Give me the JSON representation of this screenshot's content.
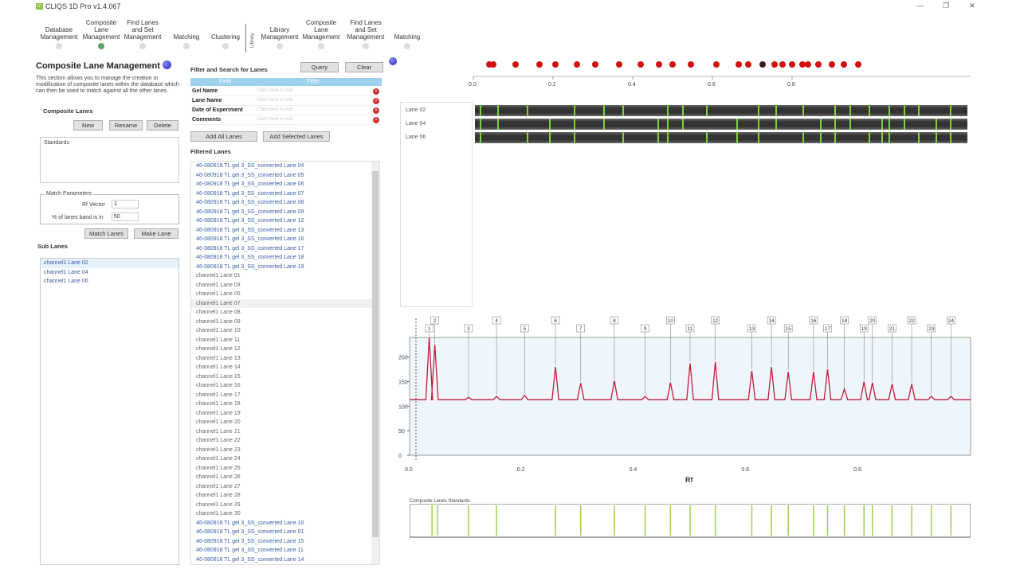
{
  "app": {
    "title": "CLIQS 1D Pro v1.4.067",
    "logo_text": "1D"
  },
  "window_controls": [
    "—",
    "❐",
    "✕"
  ],
  "nav": {
    "steps": [
      {
        "label": "Database\nManagement",
        "active": false
      },
      {
        "label": "Composite\nLane\nManagement",
        "active": true
      },
      {
        "label": "Find Lanes\nand Set\nManagement",
        "active": false
      },
      {
        "label": "Matching",
        "active": false
      },
      {
        "label": "Clustering",
        "active": false
      },
      {
        "label": "Library\nManagement",
        "active": false
      },
      {
        "label": "Composite\nLane\nManagement",
        "active": false
      },
      {
        "label": "Find Lanes\nand Set\nManagement",
        "active": false
      },
      {
        "label": "Matching",
        "active": false
      }
    ],
    "library_label": "Library"
  },
  "left": {
    "title": "Composite Lane Management",
    "description": "This section allows you to manage the creation or modification of composite lanes within the database which can then be used to match against all the other lanes.",
    "composite_lanes_label": "Composite Lanes",
    "new_label": "New",
    "rename_label": "Rename",
    "delete_label": "Delete",
    "standards_label": "Standards",
    "match_params_label": "Match Parameters",
    "rf_vector_label": "Rf Vector",
    "rf_vector_value": "1",
    "percent_label": "% of lanes band is in",
    "percent_value": "50",
    "match_lanes_label": "Match Lanes",
    "make_lane_label": "Make Lane",
    "sub_lanes_label": "Sub Lanes",
    "sub_lanes": [
      "channel1  Lane 02",
      "channel1  Lane 04",
      "channel1  Lane 06"
    ]
  },
  "middle": {
    "filter_title": "Filter and Search for Lanes",
    "query_label": "Query",
    "clear_label": "Clear",
    "col_field": "Field",
    "col_filter": "Filter",
    "filter_rows": [
      {
        "field": "Gel Name",
        "placeholder": "Click here to edit"
      },
      {
        "field": "Lane Name",
        "placeholder": "Click here to edit"
      },
      {
        "field": "Date of Experiment",
        "placeholder": "Click here to edit"
      },
      {
        "field": "Comments",
        "placeholder": "Click here to edit"
      }
    ],
    "add_all_label": "Add All Lanes",
    "add_selected_label": "Add Selected Lanes",
    "filtered_label": "Filtered Lanes",
    "lanes": [
      "46-080918 TL gel 3_SS_converted Lane 04",
      "46-080918 TL gel 3_SS_converted Lane 05",
      "46-080918 TL gel 3_SS_converted Lane 06",
      "46-080918 TL gel 3_SS_converted Lane 07",
      "46-080918 TL gel 3_SS_converted Lane 08",
      "46-080918 TL gel 3_SS_converted Lane 09",
      "46-080918 TL gel 3_SS_converted Lane 12",
      "46-080918 TL gel 3_SS_converted Lane 13",
      "46-080918 TL gel 3_SS_converted Lane 16",
      "46-080918 TL gel 3_SS_converted Lane 17",
      "46-080918 TL gel 3_SS_converted Lane 18",
      "46-080918 TL gel 3_SS_converted Lane 19",
      "channel1  Lane 01",
      "channel1  Lane 03",
      "channel1  Lane 05",
      "channel1  Lane 07",
      "channel1  Lane 08",
      "channel1  Lane 09",
      "channel1  Lane 10",
      "channel1  Lane 11",
      "channel1  Lane 12",
      "channel1  Lane 13",
      "channel1  Lane 14",
      "channel1  Lane 15",
      "channel1  Lane 16",
      "channel1  Lane 17",
      "channel1  Lane 18",
      "channel1  Lane 19",
      "channel1  Lane 20",
      "channel1  Lane 21",
      "channel1  Lane 22",
      "channel1  Lane 23",
      "channel1  Lane 24",
      "channel1  Lane 25",
      "channel1  Lane 26",
      "channel1  Lane 27",
      "channel1  Lane 28",
      "channel1  Lane 29",
      "channel1  Lane 30",
      "46-080918 TL gel 3_SS_converted Lane 10",
      "46-080918 TL gel 3_SS_converted Lane 01",
      "46-080918 TL gel 3_SS_converted Lane 15",
      "46-080918 TL gel 3_SS_converted Lane 11",
      "46-080918 TL gel 3_SS_converted Lane 14"
    ]
  },
  "right": {
    "top_axis_ticks": [
      "0.0",
      "0.2",
      "0.4",
      "0.6",
      "0.8"
    ],
    "top_dots": [
      0.04,
      0.05,
      0.105,
      0.165,
      0.205,
      0.26,
      0.305,
      0.365,
      0.42,
      0.465,
      0.5,
      0.545,
      0.61,
      0.665,
      0.69,
      0.725,
      0.755,
      0.775,
      0.8,
      0.825,
      0.84,
      0.865,
      0.9,
      0.93,
      0.965
    ],
    "dark_dot": 0.725,
    "gel_lanes": [
      "Lane 02",
      "Lane 04",
      "Lane 06"
    ],
    "gel_bands": [
      0.01,
      0.045,
      0.105,
      0.15,
      0.2,
      0.26,
      0.3,
      0.37,
      0.39,
      0.42,
      0.47,
      0.53,
      0.575,
      0.61,
      0.665,
      0.7,
      0.73,
      0.76,
      0.8,
      0.825,
      0.84,
      0.87,
      0.9,
      0.935,
      0.965
    ],
    "standards_label": "Composite Lanes Standards",
    "standards_bands": [
      0.04,
      0.05,
      0.105,
      0.155,
      0.26,
      0.305,
      0.365,
      0.42,
      0.465,
      0.5,
      0.545,
      0.61,
      0.645,
      0.675,
      0.72,
      0.745,
      0.775,
      0.81,
      0.825,
      0.86,
      0.895,
      0.93,
      0.965
    ]
  },
  "chart_data": {
    "type": "line",
    "title": "",
    "xlabel": "Rf",
    "ylabel": "",
    "xlim": [
      0,
      1
    ],
    "ylim": [
      0,
      240
    ],
    "x_ticks": [
      "0.0",
      "0.2",
      "0.4",
      "0.6",
      "0.8"
    ],
    "y_ticks": [
      "0",
      "50",
      "100",
      "150",
      "200"
    ],
    "baseline": 113,
    "peaks": [
      {
        "x": 0.035,
        "y": 240
      },
      {
        "x": 0.045,
        "y": 225
      },
      {
        "x": 0.105,
        "y": 118
      },
      {
        "x": 0.155,
        "y": 120
      },
      {
        "x": 0.205,
        "y": 122
      },
      {
        "x": 0.26,
        "y": 180
      },
      {
        "x": 0.305,
        "y": 147
      },
      {
        "x": 0.365,
        "y": 152
      },
      {
        "x": 0.42,
        "y": 120
      },
      {
        "x": 0.465,
        "y": 148
      },
      {
        "x": 0.5,
        "y": 187
      },
      {
        "x": 0.545,
        "y": 190
      },
      {
        "x": 0.61,
        "y": 172
      },
      {
        "x": 0.645,
        "y": 180
      },
      {
        "x": 0.675,
        "y": 170
      },
      {
        "x": 0.72,
        "y": 170
      },
      {
        "x": 0.745,
        "y": 175
      },
      {
        "x": 0.775,
        "y": 135
      },
      {
        "x": 0.81,
        "y": 150
      },
      {
        "x": 0.825,
        "y": 148
      },
      {
        "x": 0.86,
        "y": 145
      },
      {
        "x": 0.895,
        "y": 145
      },
      {
        "x": 0.93,
        "y": 120
      },
      {
        "x": 0.965,
        "y": 120
      }
    ],
    "peak_labels": [
      "1",
      "2",
      "3",
      "4",
      "5",
      "6",
      "7",
      "8",
      "9",
      "10",
      "11",
      "12",
      "13",
      "14",
      "15",
      "16",
      "17",
      "18",
      "19",
      "20",
      "21",
      "22",
      "23",
      "24"
    ]
  }
}
